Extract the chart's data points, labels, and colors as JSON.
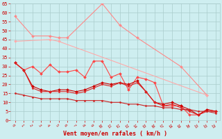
{
  "x": [
    0,
    1,
    2,
    3,
    4,
    5,
    6,
    7,
    8,
    9,
    10,
    11,
    12,
    13,
    14,
    15,
    16,
    17,
    18,
    19,
    20,
    21,
    22,
    23
  ],
  "series": [
    {
      "color": "#ff8888",
      "linewidth": 0.8,
      "markersize": 2.0,
      "values": [
        58,
        null,
        47,
        null,
        47,
        46,
        46,
        null,
        null,
        null,
        65,
        null,
        53,
        null,
        46,
        null,
        null,
        null,
        null,
        30,
        null,
        null,
        14,
        null
      ]
    },
    {
      "color": "#ffaaaa",
      "linewidth": 0.8,
      "markersize": 2.0,
      "values": [
        44,
        null,
        null,
        null,
        45,
        44,
        null,
        null,
        null,
        null,
        null,
        null,
        null,
        null,
        null,
        null,
        null,
        null,
        null,
        null,
        null,
        null,
        14,
        null
      ]
    },
    {
      "color": "#ff4444",
      "linewidth": 0.8,
      "markersize": 2.0,
      "values": [
        32,
        28,
        30,
        26,
        31,
        27,
        27,
        28,
        24,
        33,
        33,
        24,
        26,
        17,
        24,
        23,
        21,
        8,
        8,
        8,
        3,
        3,
        6,
        5
      ]
    },
    {
      "color": "#cc0000",
      "linewidth": 0.8,
      "markersize": 2.0,
      "values": [
        32,
        28,
        19,
        17,
        16,
        17,
        17,
        16,
        17,
        19,
        21,
        20,
        21,
        20,
        22,
        16,
        10,
        9,
        10,
        8,
        6,
        3,
        6,
        5
      ]
    },
    {
      "color": "#dd2222",
      "linewidth": 0.8,
      "markersize": 1.5,
      "values": [
        32,
        28,
        18,
        16,
        16,
        16,
        16,
        15,
        16,
        18,
        20,
        19,
        21,
        19,
        21,
        16,
        10,
        8,
        9,
        7,
        5,
        3,
        5,
        5
      ]
    },
    {
      "color": "#cc2222",
      "linewidth": 0.8,
      "markersize": 1.5,
      "values": [
        15,
        14,
        13,
        12,
        12,
        12,
        12,
        11,
        11,
        11,
        11,
        10,
        10,
        9,
        9,
        8,
        8,
        7,
        7,
        6,
        6,
        5,
        5,
        4
      ]
    }
  ],
  "xlim": [
    -0.5,
    23.5
  ],
  "ylim": [
    0,
    65
  ],
  "yticks": [
    0,
    5,
    10,
    15,
    20,
    25,
    30,
    35,
    40,
    45,
    50,
    55,
    60,
    65
  ],
  "xticks": [
    0,
    1,
    2,
    3,
    4,
    5,
    6,
    7,
    8,
    9,
    10,
    11,
    12,
    13,
    14,
    15,
    16,
    17,
    18,
    19,
    20,
    21,
    22,
    23
  ],
  "xlabel": "Vent moyen/en rafales ( km/h )",
  "background_color": "#ceeef0",
  "grid_color": "#aacccc",
  "tick_color": "#cc0000",
  "label_color": "#cc0000"
}
